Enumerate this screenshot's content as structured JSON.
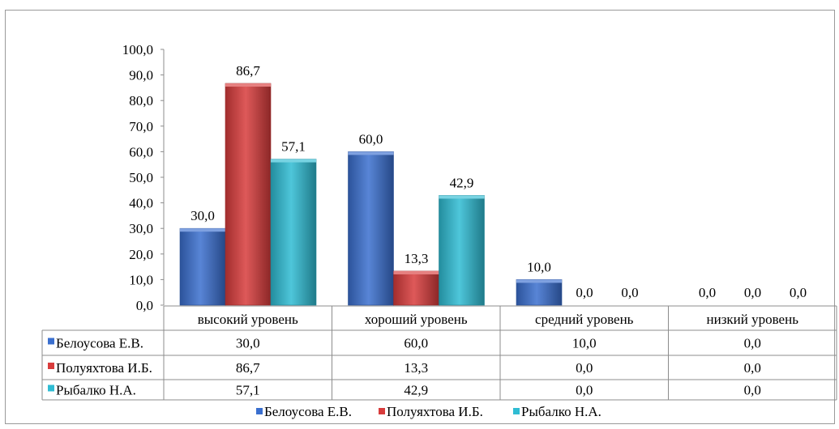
{
  "chart_data": {
    "type": "bar",
    "title": "",
    "xlabel": "",
    "ylabel": "",
    "ylim": [
      0,
      100
    ],
    "y_ticks": [
      "0,0",
      "10,0",
      "20,0",
      "30,0",
      "40,0",
      "50,0",
      "60,0",
      "70,0",
      "80,0",
      "90,0",
      "100,0"
    ],
    "categories": [
      "высокий уровень",
      "хороший уровень",
      "средний уровень",
      "низкий уровень"
    ],
    "series": [
      {
        "name": "Белоусова Е.В.",
        "color": "#3a6fcf",
        "values": [
          30.0,
          60.0,
          10.0,
          0.0
        ],
        "labels": [
          "30,0",
          "60,0",
          "10,0",
          "0,0"
        ]
      },
      {
        "name": "Полуяхтова И.Б.",
        "color": "#d83c3c",
        "values": [
          86.7,
          13.3,
          0.0,
          0.0
        ],
        "labels": [
          "86,7",
          "13,3",
          "0,0",
          "0,0"
        ]
      },
      {
        "name": "Рыбалко Н.А.",
        "color": "#2fbcd3",
        "values": [
          57.1,
          42.9,
          0.0,
          0.0
        ],
        "labels": [
          "57,1",
          "42,9",
          "0,0",
          "0,0"
        ]
      }
    ],
    "grid": false,
    "legend_position": "bottom",
    "data_table": true
  }
}
